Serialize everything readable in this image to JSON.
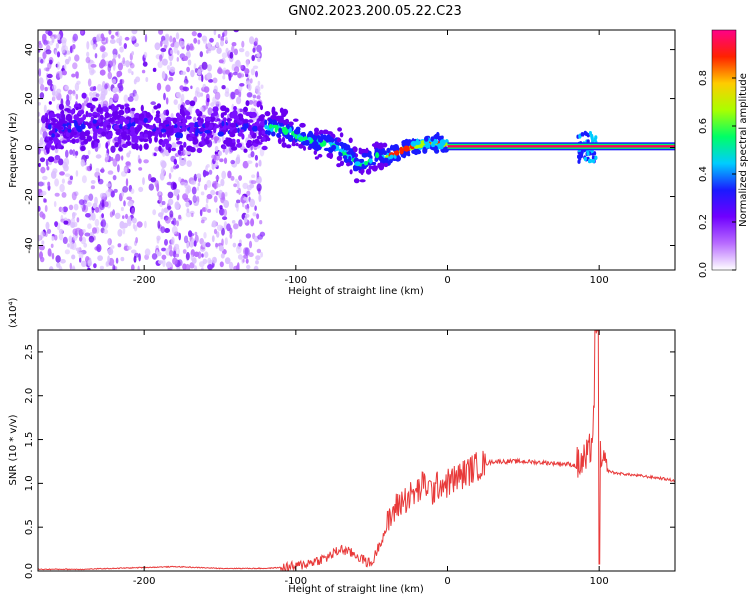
{
  "title": "GN02.2023.200.05.22.C23",
  "chart_data": [
    {
      "type": "heatmap",
      "xlabel": "Height of straight line (km)",
      "ylabel": "Frequency (Hz)",
      "xlim": [
        -270,
        150
      ],
      "ylim": [
        -50,
        48
      ],
      "x_ticks": [
        -200,
        -100,
        0,
        100
      ],
      "x_tick_labels": [
        "-200",
        "-100",
        "0",
        "100"
      ],
      "y_ticks": [
        -40,
        -20,
        0,
        20,
        40
      ],
      "y_tick_labels": [
        "-40",
        "-20",
        "0",
        "20",
        "40"
      ],
      "colorbar": {
        "label": "Normalized spectral amplitude",
        "range": [
          0,
          1
        ],
        "ticks": [
          0.0,
          0.2,
          0.4,
          0.6,
          0.8
        ],
        "tick_labels": [
          "0.0",
          "0.2",
          "0.4",
          "0.6",
          "0.8"
        ],
        "colormap": [
          "#ffffff",
          "#b86cff",
          "#7000ff",
          "#1a1aff",
          "#00ccff",
          "#00ff66",
          "#aaff00",
          "#ffcc00",
          "#ff2200",
          "#ff0088"
        ]
      },
      "ridge": {
        "x": [
          -265,
          -240,
          -200,
          -180,
          -130,
          -110,
          -100,
          -85,
          -75,
          -65,
          -60,
          -50,
          -45,
          -40,
          -30,
          -20,
          -10,
          0,
          50,
          80,
          90,
          100,
          150
        ],
        "y": [
          6,
          10,
          9,
          7,
          8,
          8,
          5,
          2,
          1,
          -3,
          -7,
          -5,
          -3,
          -4,
          -1,
          1,
          2,
          1,
          0.5,
          0.5,
          1,
          0.5,
          0.5
        ]
      },
      "noise_region": {
        "x_start": -270,
        "x_end": -122
      },
      "carrier_line": {
        "x_start": 0,
        "x_end": 150,
        "frequency": 0.5
      },
      "grid": false
    },
    {
      "type": "line",
      "xlabel": "Height of straight line (km)",
      "ylabel": "SNR (10 * v/v)",
      "y_multiplier": "(x10⁴)",
      "xlim": [
        -270,
        150
      ],
      "ylim": [
        0,
        2.75
      ],
      "x_ticks": [
        -200,
        -100,
        0,
        100
      ],
      "x_tick_labels": [
        "-200",
        "-100",
        "0",
        "100"
      ],
      "y_ticks": [
        0,
        0.5,
        1.0,
        1.5,
        2.0,
        2.5
      ],
      "y_tick_labels": [
        "0.0",
        "0.5",
        "1.0",
        "1.5",
        "2.0",
        "2.5"
      ],
      "series": [
        {
          "color": "#e83a3a",
          "x": [
            -270,
            -240,
            -200,
            -180,
            -150,
            -120,
            -100,
            -90,
            -80,
            -70,
            -60,
            -55,
            -50,
            -45,
            -40,
            -35,
            -30,
            -25,
            -20,
            -15,
            -10,
            -5,
            0,
            10,
            20,
            30,
            40,
            50,
            60,
            70,
            80,
            85,
            90,
            93,
            96,
            98,
            100,
            102,
            105,
            110,
            120,
            130,
            140,
            150
          ],
          "y": [
            0.02,
            0.02,
            0.04,
            0.05,
            0.03,
            0.03,
            0.05,
            0.1,
            0.15,
            0.25,
            0.18,
            0.12,
            0.08,
            0.3,
            0.5,
            0.7,
            0.8,
            0.85,
            0.9,
            1.0,
            0.9,
            1.0,
            1.0,
            1.1,
            1.2,
            1.25,
            1.25,
            1.25,
            1.24,
            1.23,
            1.22,
            1.2,
            1.25,
            1.3,
            1.6,
            2.7,
            1.3,
            1.2,
            1.15,
            1.12,
            1.1,
            1.08,
            1.06,
            1.03
          ]
        }
      ],
      "grid": false
    }
  ]
}
